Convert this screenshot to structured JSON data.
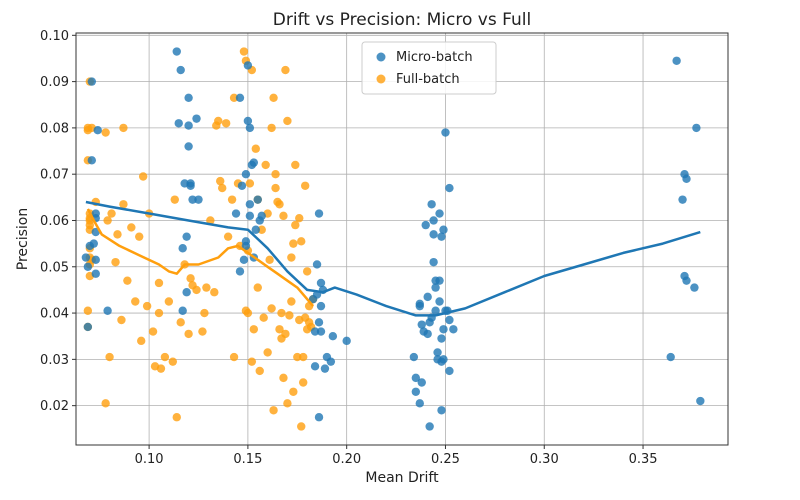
{
  "chart_data": {
    "type": "scatter",
    "title": "Drift vs Precision: Micro vs Full",
    "xlabel": "Mean Drift",
    "ylabel": "Precision",
    "xlim": [
      0.063,
      0.393
    ],
    "ylim": [
      0.0115,
      0.1005
    ],
    "xticks": [
      0.1,
      0.15,
      0.2,
      0.25,
      0.3,
      0.35
    ],
    "xtick_labels": [
      "0.10",
      "0.15",
      "0.20",
      "0.25",
      "0.30",
      "0.35"
    ],
    "yticks": [
      0.02,
      0.03,
      0.04,
      0.05,
      0.06,
      0.07,
      0.08,
      0.09,
      0.1
    ],
    "ytick_labels": [
      "0.02",
      "0.03",
      "0.04",
      "0.05",
      "0.06",
      "0.07",
      "0.08",
      "0.09",
      "0.10"
    ],
    "grid": true,
    "legend_position": "top-center",
    "colors": {
      "micro": "#1f77b4",
      "full": "#ff9f0e",
      "trend": "#1f77b4",
      "trend_full": "#ff9f0e"
    },
    "series": [
      {
        "name": "Micro-batch",
        "points": [
          [
            0.068,
            0.052
          ],
          [
            0.069,
            0.05
          ],
          [
            0.07,
            0.0545
          ],
          [
            0.071,
            0.073
          ],
          [
            0.071,
            0.09
          ],
          [
            0.072,
            0.055
          ],
          [
            0.073,
            0.0485
          ],
          [
            0.073,
            0.0515
          ],
          [
            0.073,
            0.0575
          ],
          [
            0.073,
            0.0605
          ],
          [
            0.073,
            0.0615
          ],
          [
            0.074,
            0.0795
          ],
          [
            0.079,
            0.0405
          ],
          [
            0.069,
            0.037
          ],
          [
            0.114,
            0.0965
          ],
          [
            0.115,
            0.081
          ],
          [
            0.116,
            0.0925
          ],
          [
            0.117,
            0.054
          ],
          [
            0.117,
            0.0405
          ],
          [
            0.118,
            0.068
          ],
          [
            0.119,
            0.0565
          ],
          [
            0.119,
            0.0445
          ],
          [
            0.12,
            0.0865
          ],
          [
            0.12,
            0.0805
          ],
          [
            0.12,
            0.076
          ],
          [
            0.121,
            0.068
          ],
          [
            0.121,
            0.0675
          ],
          [
            0.122,
            0.0645
          ],
          [
            0.124,
            0.082
          ],
          [
            0.125,
            0.0645
          ],
          [
            0.144,
            0.0615
          ],
          [
            0.146,
            0.0865
          ],
          [
            0.146,
            0.049
          ],
          [
            0.147,
            0.0675
          ],
          [
            0.148,
            0.0515
          ],
          [
            0.149,
            0.0555
          ],
          [
            0.149,
            0.0545
          ],
          [
            0.149,
            0.07
          ],
          [
            0.15,
            0.0935
          ],
          [
            0.15,
            0.0815
          ],
          [
            0.151,
            0.08
          ],
          [
            0.151,
            0.0635
          ],
          [
            0.151,
            0.061
          ],
          [
            0.152,
            0.072
          ],
          [
            0.153,
            0.0725
          ],
          [
            0.153,
            0.052
          ],
          [
            0.154,
            0.058
          ],
          [
            0.155,
            0.0645
          ],
          [
            0.156,
            0.06
          ],
          [
            0.157,
            0.061
          ],
          [
            0.183,
            0.043
          ],
          [
            0.184,
            0.036
          ],
          [
            0.184,
            0.0285
          ],
          [
            0.185,
            0.0505
          ],
          [
            0.185,
            0.044
          ],
          [
            0.186,
            0.0615
          ],
          [
            0.186,
            0.038
          ],
          [
            0.186,
            0.0175
          ],
          [
            0.187,
            0.0465
          ],
          [
            0.187,
            0.0415
          ],
          [
            0.187,
            0.036
          ],
          [
            0.188,
            0.045
          ],
          [
            0.189,
            0.028
          ],
          [
            0.19,
            0.0305
          ],
          [
            0.192,
            0.0295
          ],
          [
            0.193,
            0.035
          ],
          [
            0.2,
            0.034
          ],
          [
            0.234,
            0.0305
          ],
          [
            0.235,
            0.026
          ],
          [
            0.235,
            0.023
          ],
          [
            0.237,
            0.0205
          ],
          [
            0.237,
            0.042
          ],
          [
            0.237,
            0.0415
          ],
          [
            0.238,
            0.0375
          ],
          [
            0.238,
            0.025
          ],
          [
            0.239,
            0.036
          ],
          [
            0.24,
            0.059
          ],
          [
            0.241,
            0.0355
          ],
          [
            0.241,
            0.0435
          ],
          [
            0.242,
            0.038
          ],
          [
            0.242,
            0.0155
          ],
          [
            0.243,
            0.0635
          ],
          [
            0.243,
            0.039
          ],
          [
            0.244,
            0.057
          ],
          [
            0.244,
            0.06
          ],
          [
            0.244,
            0.051
          ],
          [
            0.245,
            0.047
          ],
          [
            0.245,
            0.0455
          ],
          [
            0.245,
            0.0405
          ],
          [
            0.246,
            0.0315
          ],
          [
            0.246,
            0.03
          ],
          [
            0.247,
            0.047
          ],
          [
            0.247,
            0.0615
          ],
          [
            0.247,
            0.0425
          ],
          [
            0.248,
            0.0565
          ],
          [
            0.248,
            0.0345
          ],
          [
            0.248,
            0.0295
          ],
          [
            0.248,
            0.019
          ],
          [
            0.249,
            0.058
          ],
          [
            0.249,
            0.03
          ],
          [
            0.249,
            0.0365
          ],
          [
            0.25,
            0.079
          ],
          [
            0.25,
            0.0405
          ],
          [
            0.251,
            0.0405
          ],
          [
            0.252,
            0.067
          ],
          [
            0.252,
            0.0385
          ],
          [
            0.252,
            0.0275
          ],
          [
            0.254,
            0.0365
          ],
          [
            0.364,
            0.0305
          ],
          [
            0.367,
            0.0945
          ],
          [
            0.37,
            0.0645
          ],
          [
            0.371,
            0.07
          ],
          [
            0.371,
            0.048
          ],
          [
            0.372,
            0.069
          ],
          [
            0.372,
            0.047
          ],
          [
            0.376,
            0.0455
          ],
          [
            0.377,
            0.08
          ],
          [
            0.379,
            0.021
          ]
        ]
      },
      {
        "name": "Full-batch",
        "points": [
          [
            0.069,
            0.073
          ],
          [
            0.069,
            0.08
          ],
          [
            0.069,
            0.0795
          ],
          [
            0.069,
            0.0405
          ],
          [
            0.069,
            0.037
          ],
          [
            0.07,
            0.09
          ],
          [
            0.07,
            0.0615
          ],
          [
            0.07,
            0.0605
          ],
          [
            0.07,
            0.06
          ],
          [
            0.07,
            0.059
          ],
          [
            0.07,
            0.058
          ],
          [
            0.07,
            0.054
          ],
          [
            0.07,
            0.052
          ],
          [
            0.07,
            0.0505
          ],
          [
            0.07,
            0.048
          ],
          [
            0.071,
            0.08
          ],
          [
            0.071,
            0.0515
          ],
          [
            0.073,
            0.064
          ],
          [
            0.078,
            0.079
          ],
          [
            0.078,
            0.0205
          ],
          [
            0.079,
            0.06
          ],
          [
            0.08,
            0.0305
          ],
          [
            0.081,
            0.0615
          ],
          [
            0.083,
            0.051
          ],
          [
            0.084,
            0.057
          ],
          [
            0.086,
            0.0385
          ],
          [
            0.087,
            0.08
          ],
          [
            0.087,
            0.0635
          ],
          [
            0.089,
            0.047
          ],
          [
            0.091,
            0.0585
          ],
          [
            0.093,
            0.0425
          ],
          [
            0.095,
            0.0565
          ],
          [
            0.096,
            0.034
          ],
          [
            0.097,
            0.0695
          ],
          [
            0.099,
            0.0415
          ],
          [
            0.1,
            0.0615
          ],
          [
            0.102,
            0.036
          ],
          [
            0.103,
            0.0285
          ],
          [
            0.105,
            0.0465
          ],
          [
            0.105,
            0.04
          ],
          [
            0.106,
            0.028
          ],
          [
            0.108,
            0.0305
          ],
          [
            0.11,
            0.0425
          ],
          [
            0.112,
            0.0295
          ],
          [
            0.113,
            0.0645
          ],
          [
            0.114,
            0.0175
          ],
          [
            0.116,
            0.038
          ],
          [
            0.118,
            0.0505
          ],
          [
            0.12,
            0.0355
          ],
          [
            0.121,
            0.0475
          ],
          [
            0.122,
            0.046
          ],
          [
            0.124,
            0.045
          ],
          [
            0.127,
            0.036
          ],
          [
            0.128,
            0.04
          ],
          [
            0.129,
            0.0455
          ],
          [
            0.131,
            0.06
          ],
          [
            0.133,
            0.0445
          ],
          [
            0.134,
            0.0805
          ],
          [
            0.135,
            0.0815
          ],
          [
            0.136,
            0.0685
          ],
          [
            0.137,
            0.067
          ],
          [
            0.139,
            0.081
          ],
          [
            0.14,
            0.0565
          ],
          [
            0.142,
            0.0645
          ],
          [
            0.143,
            0.0305
          ],
          [
            0.143,
            0.0865
          ],
          [
            0.145,
            0.068
          ],
          [
            0.146,
            0.0545
          ],
          [
            0.148,
            0.0965
          ],
          [
            0.149,
            0.0945
          ],
          [
            0.149,
            0.0405
          ],
          [
            0.15,
            0.0535
          ],
          [
            0.15,
            0.04
          ],
          [
            0.151,
            0.068
          ],
          [
            0.152,
            0.0925
          ],
          [
            0.152,
            0.0295
          ],
          [
            0.153,
            0.0365
          ],
          [
            0.154,
            0.0755
          ],
          [
            0.155,
            0.0455
          ],
          [
            0.155,
            0.0645
          ],
          [
            0.156,
            0.0275
          ],
          [
            0.157,
            0.058
          ],
          [
            0.158,
            0.039
          ],
          [
            0.159,
            0.072
          ],
          [
            0.16,
            0.0615
          ],
          [
            0.16,
            0.0315
          ],
          [
            0.161,
            0.0515
          ],
          [
            0.162,
            0.041
          ],
          [
            0.162,
            0.08
          ],
          [
            0.163,
            0.0865
          ],
          [
            0.163,
            0.019
          ],
          [
            0.164,
            0.07
          ],
          [
            0.164,
            0.067
          ],
          [
            0.165,
            0.064
          ],
          [
            0.166,
            0.0365
          ],
          [
            0.166,
            0.0635
          ],
          [
            0.167,
            0.04
          ],
          [
            0.167,
            0.0345
          ],
          [
            0.168,
            0.061
          ],
          [
            0.168,
            0.026
          ],
          [
            0.169,
            0.0925
          ],
          [
            0.169,
            0.0355
          ],
          [
            0.17,
            0.0815
          ],
          [
            0.17,
            0.0205
          ],
          [
            0.171,
            0.0395
          ],
          [
            0.172,
            0.052
          ],
          [
            0.172,
            0.0425
          ],
          [
            0.173,
            0.055
          ],
          [
            0.173,
            0.023
          ],
          [
            0.174,
            0.059
          ],
          [
            0.174,
            0.072
          ],
          [
            0.175,
            0.0305
          ],
          [
            0.176,
            0.0385
          ],
          [
            0.176,
            0.0605
          ],
          [
            0.177,
            0.0555
          ],
          [
            0.177,
            0.0155
          ],
          [
            0.178,
            0.0305
          ],
          [
            0.178,
            0.025
          ],
          [
            0.179,
            0.0675
          ],
          [
            0.179,
            0.039
          ],
          [
            0.18,
            0.0365
          ],
          [
            0.18,
            0.049
          ],
          [
            0.181,
            0.0415
          ],
          [
            0.181,
            0.038
          ],
          [
            0.182,
            0.037
          ],
          [
            0.183,
            0.043
          ]
        ]
      }
    ],
    "trend_lines": [
      {
        "name": "Micro-batch trend",
        "points": [
          [
            0.068,
            0.064
          ],
          [
            0.08,
            0.063
          ],
          [
            0.1,
            0.0615
          ],
          [
            0.12,
            0.06
          ],
          [
            0.14,
            0.0585
          ],
          [
            0.15,
            0.058
          ],
          [
            0.16,
            0.054
          ],
          [
            0.17,
            0.049
          ],
          [
            0.18,
            0.045
          ],
          [
            0.188,
            0.0445
          ],
          [
            0.194,
            0.0455
          ],
          [
            0.205,
            0.044
          ],
          [
            0.22,
            0.0415
          ],
          [
            0.235,
            0.0395
          ],
          [
            0.245,
            0.0395
          ],
          [
            0.26,
            0.041
          ],
          [
            0.28,
            0.0445
          ],
          [
            0.3,
            0.048
          ],
          [
            0.32,
            0.0505
          ],
          [
            0.34,
            0.053
          ],
          [
            0.36,
            0.055
          ],
          [
            0.379,
            0.0575
          ]
        ]
      },
      {
        "name": "Full-batch trend",
        "points": [
          [
            0.069,
            0.0625
          ],
          [
            0.072,
            0.06
          ],
          [
            0.076,
            0.057
          ],
          [
            0.085,
            0.0545
          ],
          [
            0.095,
            0.0525
          ],
          [
            0.105,
            0.0505
          ],
          [
            0.11,
            0.049
          ],
          [
            0.114,
            0.0485
          ],
          [
            0.118,
            0.0505
          ],
          [
            0.125,
            0.0505
          ],
          [
            0.135,
            0.052
          ],
          [
            0.14,
            0.054
          ],
          [
            0.145,
            0.0545
          ],
          [
            0.15,
            0.053
          ],
          [
            0.155,
            0.0515
          ],
          [
            0.16,
            0.05
          ],
          [
            0.165,
            0.0485
          ],
          [
            0.17,
            0.047
          ],
          [
            0.175,
            0.0455
          ],
          [
            0.183,
            0.0415
          ]
        ]
      }
    ]
  }
}
